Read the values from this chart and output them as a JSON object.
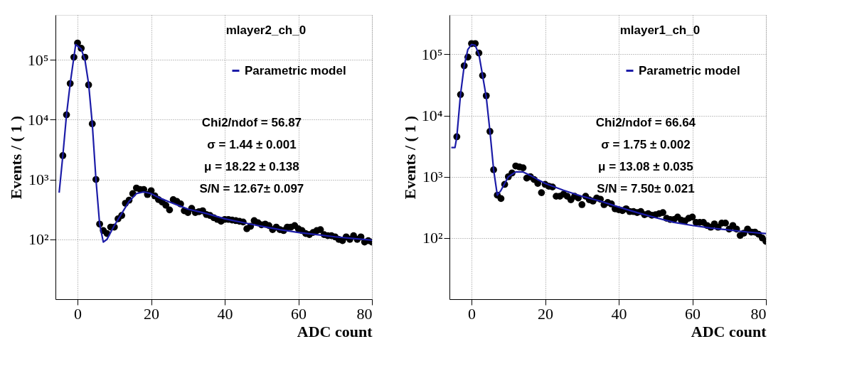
{
  "chart_data": [
    {
      "type": "scatter",
      "title": "mlayer2_ch_0",
      "xlabel": "ADC count",
      "ylabel": "Events / ( 1 )",
      "log": "y",
      "grid": true,
      "legend": "top right",
      "xlim": [
        -6,
        80
      ],
      "xticks": [
        0,
        20,
        40,
        60,
        80
      ],
      "ylim": [
        10,
        560000
      ],
      "yticks": [
        {
          "value": 100,
          "label": "10²"
        },
        {
          "value": 1000,
          "label": "10³"
        },
        {
          "value": 10000,
          "label": "10⁴"
        },
        {
          "value": 100000,
          "label": "10⁵"
        }
      ],
      "annotations": [
        "Chi2/ndof = 56.87",
        "σ = 1.44 ± 0.001",
        "μ = 18.22 ± 0.138",
        "S/N = 12.67± 0.097"
      ],
      "series": [
        {
          "color": "#000000",
          "marker": "circle",
          "x": [
            -4,
            -3,
            -2,
            -1,
            0,
            1,
            2,
            3,
            4,
            5,
            6,
            7,
            8,
            9,
            10,
            11,
            12,
            13,
            14,
            15,
            16,
            17,
            18,
            19,
            20,
            21,
            22,
            23,
            24,
            25,
            26,
            27,
            28,
            29,
            30,
            31,
            32,
            33,
            34,
            35,
            36,
            37,
            38,
            39,
            40,
            41,
            42,
            43,
            44,
            45,
            46,
            47,
            48,
            49,
            50,
            51,
            52,
            53,
            54,
            55,
            56,
            57,
            58,
            59,
            60,
            61,
            62,
            63,
            64,
            65,
            66,
            67,
            68,
            69,
            70,
            71,
            72,
            73,
            74,
            75,
            76,
            77,
            78,
            79,
            80
          ],
          "values": [
            2500,
            12000,
            40000,
            110000,
            190000,
            155000,
            110000,
            38000,
            8500,
            1000,
            180,
            140,
            125,
            160,
            160,
            220,
            250,
            400,
            450,
            580,
            720,
            680,
            680,
            560,
            650,
            530,
            460,
            420,
            370,
            310,
            460,
            430,
            390,
            300,
            280,
            330,
            280,
            290,
            300,
            260,
            250,
            230,
            215,
            200,
            215,
            215,
            210,
            205,
            200,
            195,
            150,
            165,
            205,
            190,
            175,
            180,
            170,
            145,
            160,
            145,
            140,
            160,
            160,
            170,
            150,
            140,
            125,
            120,
            130,
            140,
            145,
            120,
            115,
            115,
            110,
            100,
            95,
            110,
            100,
            115,
            100,
            110,
            90,
            95,
            90
          ]
        },
        {
          "type": "line",
          "name": "Parametric model",
          "color": "#1c1ca8",
          "line_style": "solid",
          "marker": "none",
          "x": [
            -5,
            -4,
            -3,
            -2,
            -1,
            -0.5,
            0,
            1,
            2,
            3,
            4,
            5,
            6,
            7,
            8,
            10,
            12,
            14,
            16,
            18,
            20,
            22,
            25,
            30,
            35,
            40,
            45,
            50,
            55,
            60,
            65,
            70,
            75,
            80
          ],
          "values": [
            600,
            2500,
            12000,
            40000,
            110000,
            180000,
            170000,
            150000,
            100000,
            40000,
            8500,
            1000,
            180,
            90,
            100,
            170,
            270,
            430,
            580,
            620,
            580,
            500,
            420,
            320,
            270,
            220,
            190,
            165,
            145,
            130,
            120,
            110,
            103,
            97
          ]
        }
      ]
    },
    {
      "type": "scatter",
      "title": "mlayer1_ch_0",
      "xlabel": "ADC count",
      "ylabel": "Events / ( 1 )",
      "log": "y",
      "grid": true,
      "legend": "top right",
      "xlim": [
        -6,
        80
      ],
      "xticks": [
        0,
        20,
        40,
        60,
        80
      ],
      "ylim": [
        10,
        440000
      ],
      "yticks": [
        {
          "value": 100,
          "label": "10²"
        },
        {
          "value": 1000,
          "label": "10³"
        },
        {
          "value": 10000,
          "label": "10⁴"
        },
        {
          "value": 100000,
          "label": "10⁵"
        }
      ],
      "annotations": [
        "Chi2/ndof = 66.64",
        "σ = 1.75 ± 0.002",
        "μ = 13.08 ± 0.035",
        "S/N = 7.50± 0.021"
      ],
      "series": [
        {
          "color": "#000000",
          "marker": "circle",
          "x": [
            -4,
            -3,
            -2,
            -1,
            0,
            1,
            2,
            3,
            4,
            5,
            6,
            7,
            8,
            9,
            10,
            11,
            12,
            13,
            14,
            15,
            16,
            17,
            18,
            19,
            20,
            21,
            22,
            23,
            24,
            25,
            26,
            27,
            28,
            29,
            30,
            31,
            32,
            33,
            34,
            35,
            36,
            37,
            38,
            39,
            40,
            41,
            42,
            43,
            44,
            45,
            46,
            47,
            48,
            49,
            50,
            51,
            52,
            53,
            54,
            55,
            56,
            57,
            58,
            59,
            60,
            61,
            62,
            63,
            64,
            65,
            66,
            67,
            68,
            69,
            70,
            71,
            72,
            73,
            74,
            75,
            76,
            77,
            78,
            79,
            80
          ],
          "values": [
            4500,
            22000,
            65000,
            90000,
            150000,
            150000,
            105000,
            45000,
            21000,
            5500,
            1300,
            500,
            440,
            750,
            1000,
            1150,
            1500,
            1450,
            1400,
            950,
            1000,
            900,
            780,
            550,
            750,
            700,
            680,
            480,
            480,
            520,
            480,
            420,
            480,
            450,
            350,
            480,
            420,
            400,
            450,
            430,
            350,
            380,
            360,
            300,
            290,
            280,
            300,
            270,
            270,
            260,
            270,
            240,
            250,
            235,
            240,
            250,
            260,
            210,
            200,
            200,
            220,
            195,
            190,
            210,
            220,
            180,
            180,
            180,
            160,
            150,
            170,
            150,
            175,
            175,
            140,
            160,
            140,
            110,
            120,
            140,
            125,
            125,
            115,
            100,
            88
          ]
        },
        {
          "type": "line",
          "name": "Parametric model",
          "color": "#1c1ca8",
          "line_style": "solid",
          "marker": "none",
          "x": [
            -5.5,
            -4.5,
            -4,
            -3,
            -2,
            -1,
            0,
            1,
            2,
            3,
            4,
            5,
            6,
            7,
            8,
            10,
            12,
            14,
            16,
            18,
            20,
            22,
            25,
            30,
            35,
            40,
            45,
            50,
            55,
            60,
            65,
            70,
            75,
            80
          ],
          "values": [
            3000,
            3000,
            4500,
            22000,
            65000,
            120000,
            145000,
            140000,
            100000,
            45000,
            20000,
            5500,
            1300,
            500,
            600,
            1000,
            1200,
            1200,
            1050,
            900,
            780,
            700,
            600,
            480,
            400,
            320,
            260,
            215,
            180,
            160,
            145,
            135,
            125,
            118
          ]
        }
      ]
    }
  ]
}
